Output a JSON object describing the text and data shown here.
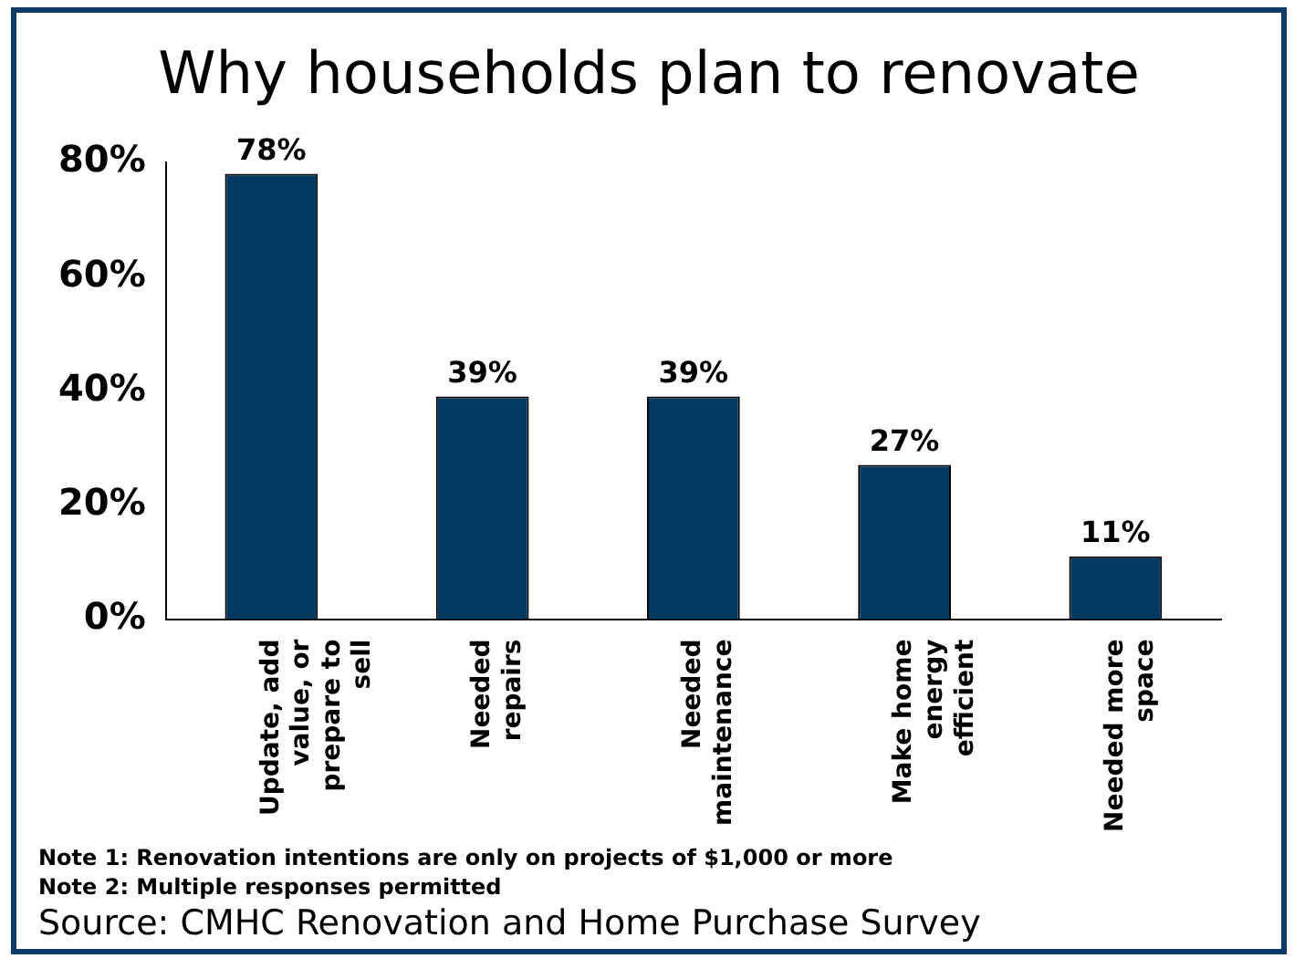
{
  "chart_data": {
    "type": "bar",
    "title": "Why households plan to renovate",
    "categories": [
      "Update, add value, or prepare to sell",
      "Needed repairs",
      "Needed maintenance",
      "Make home energy efficient",
      "Needed more space"
    ],
    "values": [
      78,
      39,
      39,
      27,
      11
    ],
    "color": "#003a63",
    "value_labels": [
      "78%",
      "39%",
      "39%",
      "27%",
      "11%"
    ],
    "ylim": [
      0,
      80
    ],
    "yticks": [
      {
        "value": 0,
        "label": "0%"
      },
      {
        "value": 20,
        "label": "20%"
      },
      {
        "value": 40,
        "label": "40%"
      },
      {
        "value": 60,
        "label": "60%"
      },
      {
        "value": 80,
        "label": "80%"
      }
    ],
    "grid": false,
    "legend": false,
    "annotations": [
      "Note 1: Renovation intentions are only on projects of $1,000 or more",
      "Note 2: Multiple responses permitted",
      "Source: CMHC Renovation and Home Purchase Survey"
    ]
  }
}
